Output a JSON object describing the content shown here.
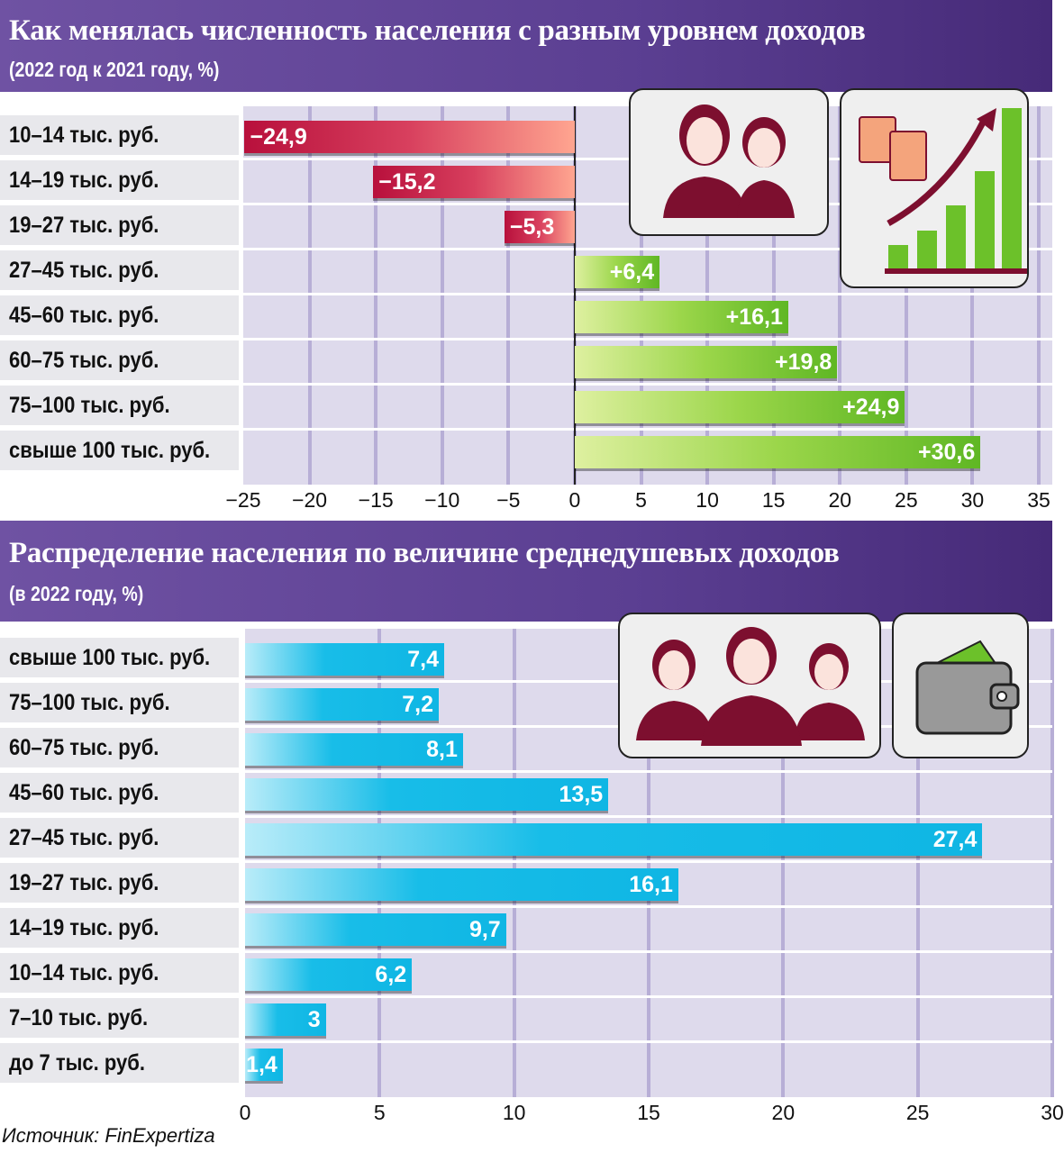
{
  "chart_data": [
    {
      "type": "bar",
      "orientation": "horizontal",
      "title": "Как менялась численность населения с разным уровнем доходов",
      "subtitle": "(2022 год к 2021 году, %)",
      "categories": [
        "10–14 тыс. руб.",
        "14–19 тыс. руб.",
        "19–27 тыс. руб.",
        "27–45 тыс. руб.",
        "45–60 тыс. руб.",
        "60–75 тыс. руб.",
        "75–100 тыс. руб.",
        "свыше 100 тыс. руб."
      ],
      "values": [
        -24.9,
        -15.2,
        -5.3,
        6.4,
        16.1,
        19.8,
        24.9,
        30.6
      ],
      "value_labels": [
        "−24,9",
        "−15,2",
        "−5,3",
        "+6,4",
        "+16,1",
        "+19,8",
        "+24,9",
        "+30,6"
      ],
      "xlim": [
        -25,
        35
      ],
      "xticks": [
        "−25",
        "−20",
        "−15",
        "−10",
        "−5",
        "0",
        "5",
        "10",
        "15",
        "20",
        "25",
        "30",
        "35"
      ],
      "grid": true,
      "colors": {
        "negative": "#c0133f",
        "positive": "#6cc12a"
      }
    },
    {
      "type": "bar",
      "orientation": "horizontal",
      "title": "Распределение населения по величине среднедушевых доходов",
      "subtitle": "(в 2022 году, %)",
      "categories": [
        "свыше 100 тыс. руб.",
        "75–100 тыс. руб.",
        "60–75 тыс. руб.",
        "45–60 тыс. руб.",
        "27–45 тыс. руб.",
        "19–27 тыс. руб.",
        "14–19 тыс. руб.",
        "10–14 тыс. руб.",
        "7–10 тыс. руб.",
        "до 7 тыс. руб."
      ],
      "values": [
        7.4,
        7.2,
        8.1,
        13.5,
        27.4,
        16.1,
        9.7,
        6.2,
        3,
        1.4
      ],
      "value_labels": [
        "7,4",
        "7,2",
        "8,1",
        "13,5",
        "27,4",
        "16,1",
        "9,7",
        "6,2",
        "3",
        "1,4"
      ],
      "xlim": [
        0,
        30
      ],
      "xticks": [
        "0",
        "5",
        "10",
        "15",
        "20",
        "25",
        "30"
      ],
      "grid": true,
      "colors": {
        "bar": "#18bde8"
      }
    }
  ],
  "source": "Источник: FinExpertiza",
  "icons": [
    "people-couple-icon",
    "money-growth-chart-icon",
    "people-group-icon",
    "wallet-icon"
  ]
}
